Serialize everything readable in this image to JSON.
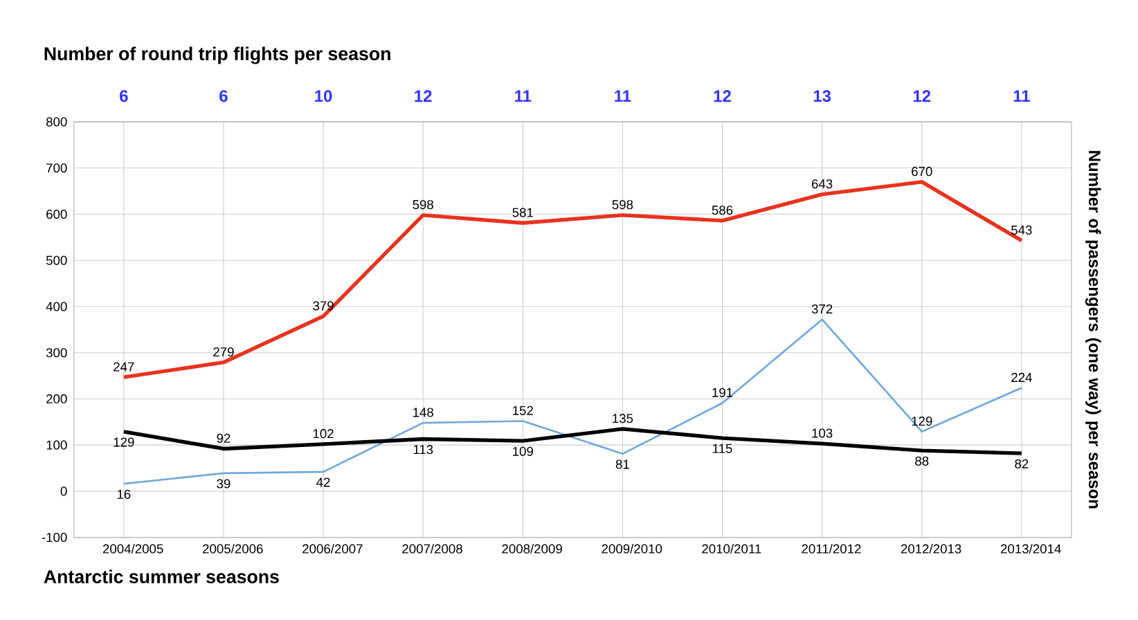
{
  "chart_data": {
    "type": "line",
    "title": "Number of round trip flights per season",
    "xlabel": "Antarctic summer seasons",
    "ylabel": "Number of passengers (one way) per season",
    "categories": [
      "2004/2005",
      "2005/2006",
      "2006/2007",
      "2007/2008",
      "2008/2009",
      "2009/2010",
      "2010/2011",
      "2011/2012",
      "2012/2013",
      "2013/2014"
    ],
    "series": [
      {
        "color": "#e8321e",
        "values": [
          247,
          279,
          379,
          598,
          581,
          598,
          586,
          643,
          670,
          543
        ]
      },
      {
        "color": "#6fa8dc",
        "values": [
          16,
          39,
          42,
          148,
          152,
          81,
          191,
          372,
          129,
          224
        ]
      },
      {
        "color": "#000000",
        "values": [
          129,
          92,
          102,
          113,
          109,
          135,
          115,
          103,
          88,
          82
        ]
      }
    ],
    "annotations": [
      "6",
      "6",
      "10",
      "12",
      "11",
      "11",
      "12",
      "13",
      "12",
      "11"
    ],
    "ylim": [
      -100,
      800
    ],
    "yticks": [
      -100,
      0,
      100,
      200,
      300,
      400,
      500,
      600,
      700,
      800
    ],
    "grid": true,
    "data_labels": true,
    "marker": "none",
    "line_style": "solid"
  }
}
